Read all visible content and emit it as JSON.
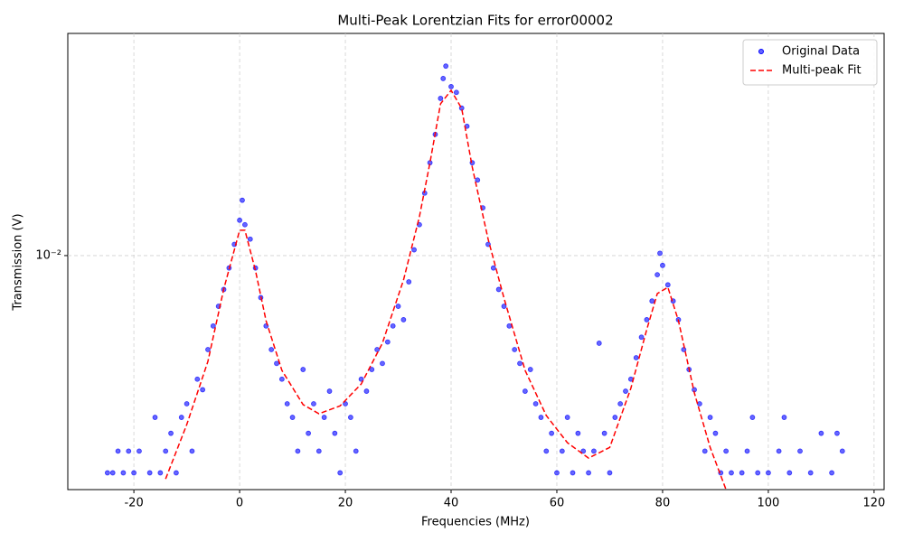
{
  "chart_data": {
    "type": "scatter",
    "title": "Multi-Peak Lorentzian Fits for error00002",
    "xlabel": "Frequencies (MHz)",
    "ylabel": "Transmission (V)",
    "xlim": [
      -32.5,
      121.9
    ],
    "xticks": [
      -20,
      0,
      20,
      40,
      60,
      80,
      100,
      120
    ],
    "ylim": [
      0.00137,
      0.066
    ],
    "yscale": "log",
    "yticks": [
      {
        "value": 0.01,
        "label": "10⁻²"
      }
    ],
    "grid": true,
    "legend": "upper right",
    "series": [
      {
        "name": "Original Data",
        "type": "scatter",
        "color": "#0000ff",
        "x": [
          -25,
          -24,
          -23,
          -22,
          -21,
          -20,
          -19,
          -17,
          -16,
          -15,
          -14,
          -13,
          -12,
          -11,
          -10,
          -9,
          -8,
          -7,
          -6,
          -5,
          -4,
          -3,
          -2,
          -1,
          0,
          0.5,
          1,
          2,
          3,
          4,
          5,
          6,
          7,
          8,
          9,
          10,
          11,
          12,
          13,
          14,
          15,
          16,
          17,
          18,
          19,
          20,
          21,
          22,
          23,
          24,
          25,
          26,
          27,
          28,
          29,
          30,
          31,
          32,
          33,
          34,
          35,
          36,
          37,
          38,
          38.5,
          39,
          40,
          41,
          42,
          43,
          44,
          45,
          46,
          47,
          48,
          49,
          50,
          51,
          52,
          53,
          54,
          55,
          56,
          57,
          58,
          59,
          60,
          61,
          62,
          63,
          64,
          65,
          66,
          67,
          68,
          69,
          70,
          71,
          72,
          73,
          74,
          75,
          76,
          77,
          78,
          79,
          79.5,
          80,
          81,
          82,
          83,
          84,
          85,
          86,
          87,
          88,
          89,
          90,
          91,
          92,
          93,
          95,
          96,
          97,
          98,
          100,
          102,
          103,
          104,
          106,
          108,
          110,
          112,
          113,
          114
        ],
        "values": [
          0.00158,
          0.00158,
          0.0019,
          0.00158,
          0.0019,
          0.00158,
          0.0019,
          0.00158,
          0.00253,
          0.00158,
          0.0019,
          0.00221,
          0.00158,
          0.00253,
          0.00284,
          0.0019,
          0.0035,
          0.0032,
          0.0045,
          0.0055,
          0.0065,
          0.0075,
          0.009,
          0.011,
          0.0135,
          0.016,
          0.013,
          0.0115,
          0.009,
          0.007,
          0.0055,
          0.0045,
          0.004,
          0.0035,
          0.00284,
          0.00253,
          0.0019,
          0.0038,
          0.00221,
          0.00284,
          0.0019,
          0.00253,
          0.00316,
          0.00221,
          0.00158,
          0.00284,
          0.00253,
          0.0019,
          0.0035,
          0.00316,
          0.0038,
          0.0045,
          0.004,
          0.0048,
          0.0055,
          0.0065,
          0.0058,
          0.008,
          0.0105,
          0.013,
          0.017,
          0.022,
          0.028,
          0.038,
          0.045,
          0.05,
          0.042,
          0.04,
          0.035,
          0.03,
          0.022,
          0.019,
          0.015,
          0.011,
          0.009,
          0.0075,
          0.0065,
          0.0055,
          0.0045,
          0.004,
          0.00316,
          0.0038,
          0.00284,
          0.00253,
          0.0019,
          0.00221,
          0.00158,
          0.0019,
          0.00253,
          0.00158,
          0.00221,
          0.0019,
          0.00158,
          0.0019,
          0.00475,
          0.00221,
          0.00158,
          0.00253,
          0.00284,
          0.00316,
          0.0035,
          0.0042,
          0.005,
          0.0058,
          0.0068,
          0.0085,
          0.0102,
          0.0092,
          0.0078,
          0.0068,
          0.0058,
          0.0045,
          0.0038,
          0.0032,
          0.00284,
          0.0019,
          0.00253,
          0.00221,
          0.00158,
          0.0019,
          0.00158,
          0.00158,
          0.0019,
          0.00253,
          0.00158,
          0.00158,
          0.0019,
          0.00253,
          0.00158,
          0.0019,
          0.00158,
          0.00221,
          0.00158,
          0.00221,
          0.0019
        ]
      },
      {
        "name": "Multi-peak Fit",
        "type": "line",
        "color": "#ff0000",
        "dash": true,
        "x": [
          -14,
          -10,
          -6,
          -3,
          0,
          1,
          3,
          5,
          8,
          12,
          15,
          19,
          23,
          27,
          31,
          34,
          36,
          38,
          40,
          42,
          44,
          47,
          50,
          54,
          58,
          62,
          66,
          70,
          74,
          77,
          79,
          81,
          83,
          86,
          89,
          92
        ],
        "values": [
          0.0015,
          0.00238,
          0.00407,
          0.00753,
          0.0124,
          0.0124,
          0.0088,
          0.00575,
          0.00377,
          0.00282,
          0.00261,
          0.00279,
          0.00336,
          0.00475,
          0.00813,
          0.0139,
          0.022,
          0.0363,
          0.0407,
          0.0349,
          0.0212,
          0.0115,
          0.00697,
          0.00377,
          0.00257,
          0.00204,
          0.00179,
          0.00196,
          0.00324,
          0.00533,
          0.00724,
          0.00764,
          0.00575,
          0.00312,
          0.00196,
          0.00137
        ]
      }
    ]
  }
}
